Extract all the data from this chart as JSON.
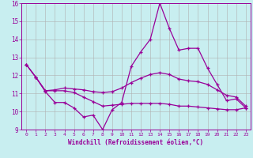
{
  "xlabel": "Windchill (Refroidissement éolien,°C)",
  "background_color": "#c8eef0",
  "grid_color": "#b0b0b0",
  "line_color": "#990099",
  "xlim": [
    -0.5,
    23.5
  ],
  "ylim": [
    9,
    16
  ],
  "x_ticks": [
    0,
    1,
    2,
    3,
    4,
    5,
    6,
    7,
    8,
    9,
    10,
    11,
    12,
    13,
    14,
    15,
    16,
    17,
    18,
    19,
    20,
    21,
    22,
    23
  ],
  "y_ticks": [
    9,
    10,
    11,
    12,
    13,
    14,
    15,
    16
  ],
  "series1_x": [
    0,
    1,
    2,
    3,
    4,
    5,
    6,
    7,
    8,
    9,
    10,
    11,
    12,
    13,
    14,
    15,
    16,
    17,
    18,
    19,
    20,
    21,
    22,
    23
  ],
  "series1_y": [
    12.6,
    11.9,
    11.1,
    10.5,
    10.5,
    10.2,
    9.7,
    9.8,
    9.0,
    10.1,
    10.5,
    12.5,
    13.3,
    14.0,
    16.0,
    14.6,
    13.4,
    13.5,
    13.5,
    12.4,
    11.5,
    10.6,
    10.7,
    10.2
  ],
  "series2_x": [
    0,
    1,
    2,
    3,
    4,
    5,
    6,
    7,
    8,
    9,
    10,
    11,
    12,
    13,
    14,
    15,
    16,
    17,
    18,
    19,
    20,
    21,
    22,
    23
  ],
  "series2_y": [
    12.6,
    11.9,
    11.15,
    11.2,
    11.3,
    11.25,
    11.2,
    11.1,
    11.05,
    11.1,
    11.3,
    11.6,
    11.85,
    12.05,
    12.15,
    12.05,
    11.8,
    11.7,
    11.65,
    11.5,
    11.2,
    10.9,
    10.8,
    10.3
  ],
  "series3_x": [
    0,
    1,
    2,
    3,
    4,
    5,
    6,
    7,
    8,
    9,
    10,
    11,
    12,
    13,
    14,
    15,
    16,
    17,
    18,
    19,
    20,
    21,
    22,
    23
  ],
  "series3_y": [
    12.6,
    11.9,
    11.15,
    11.15,
    11.15,
    11.05,
    10.8,
    10.55,
    10.3,
    10.35,
    10.4,
    10.45,
    10.45,
    10.45,
    10.45,
    10.4,
    10.3,
    10.3,
    10.25,
    10.2,
    10.15,
    10.1,
    10.1,
    10.2
  ]
}
